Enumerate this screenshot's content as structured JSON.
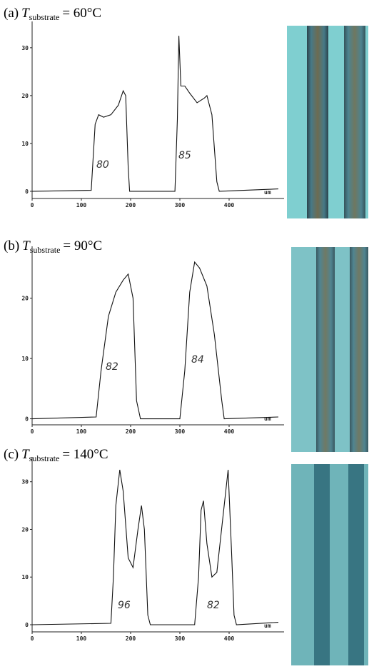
{
  "chart_data": [
    {
      "type": "line",
      "title": {
        "label": "(a)",
        "variable": "T",
        "subscript": "substrate",
        "condition": "= 60°C"
      },
      "x": [
        0,
        120,
        128,
        135,
        145,
        160,
        175,
        185,
        190,
        195,
        198,
        290,
        295,
        298,
        302,
        310,
        320,
        335,
        350,
        355,
        365,
        375,
        380,
        500
      ],
      "series": [
        {
          "color": "#111111",
          "values": [
            0,
            0.2,
            14,
            16,
            15.5,
            16,
            18,
            21,
            20,
            5,
            0,
            0,
            15,
            32.5,
            22,
            22,
            20.5,
            18.5,
            19.5,
            20,
            16,
            2,
            0,
            0.5
          ]
        }
      ],
      "xlim": [
        0,
        500
      ],
      "xticks": [
        0,
        100,
        200,
        300,
        400
      ],
      "ylim": [
        -1.5,
        35.5
      ],
      "yticks": [
        0,
        10,
        20,
        30
      ],
      "x_unit": "um",
      "annotations": [
        "80",
        "85"
      ]
    },
    {
      "type": "line",
      "title": {
        "label": "(b)",
        "variable": "T",
        "subscript": "substrate",
        "condition": "= 90°C"
      },
      "x": [
        0,
        130,
        140,
        155,
        170,
        185,
        195,
        205,
        212,
        220,
        300,
        310,
        320,
        330,
        340,
        355,
        370,
        385,
        390,
        500
      ],
      "series": [
        {
          "color": "#111111",
          "values": [
            0,
            0.3,
            8,
            17,
            21,
            23,
            24,
            20,
            3,
            0,
            0,
            8,
            21,
            26,
            25,
            22,
            14,
            3,
            0,
            0.3
          ]
        }
      ],
      "xlim": [
        0,
        500
      ],
      "xticks": [
        0,
        100,
        200,
        300,
        400
      ],
      "ylim": [
        -1,
        28.6
      ],
      "yticks": [
        0,
        10,
        20
      ],
      "x_unit": "um",
      "annotations": [
        "82",
        "84"
      ]
    },
    {
      "type": "line",
      "title": {
        "label": "(c)",
        "variable": "T",
        "subscript": "substrate",
        "condition": "= 140°C"
      },
      "x": [
        0,
        160,
        165,
        170,
        178,
        185,
        195,
        205,
        215,
        222,
        228,
        235,
        240,
        330,
        338,
        343,
        348,
        355,
        365,
        375,
        390,
        398,
        405,
        410,
        415,
        500
      ],
      "series": [
        {
          "color": "#111111",
          "values": [
            0,
            0.3,
            10,
            25,
            32.5,
            28,
            14,
            12,
            20,
            25,
            20,
            2,
            0,
            0,
            10,
            24,
            26,
            17,
            10,
            11,
            25,
            32.5,
            15,
            2,
            0,
            0.5
          ]
        }
      ],
      "xlim": [
        0,
        500
      ],
      "xticks": [
        0,
        100,
        200,
        300,
        400
      ],
      "ylim": [
        -1.5,
        35.2
      ],
      "yticks": [
        0,
        10,
        20,
        30
      ],
      "x_unit": "um",
      "annotations": [
        "96",
        "82"
      ]
    }
  ]
}
